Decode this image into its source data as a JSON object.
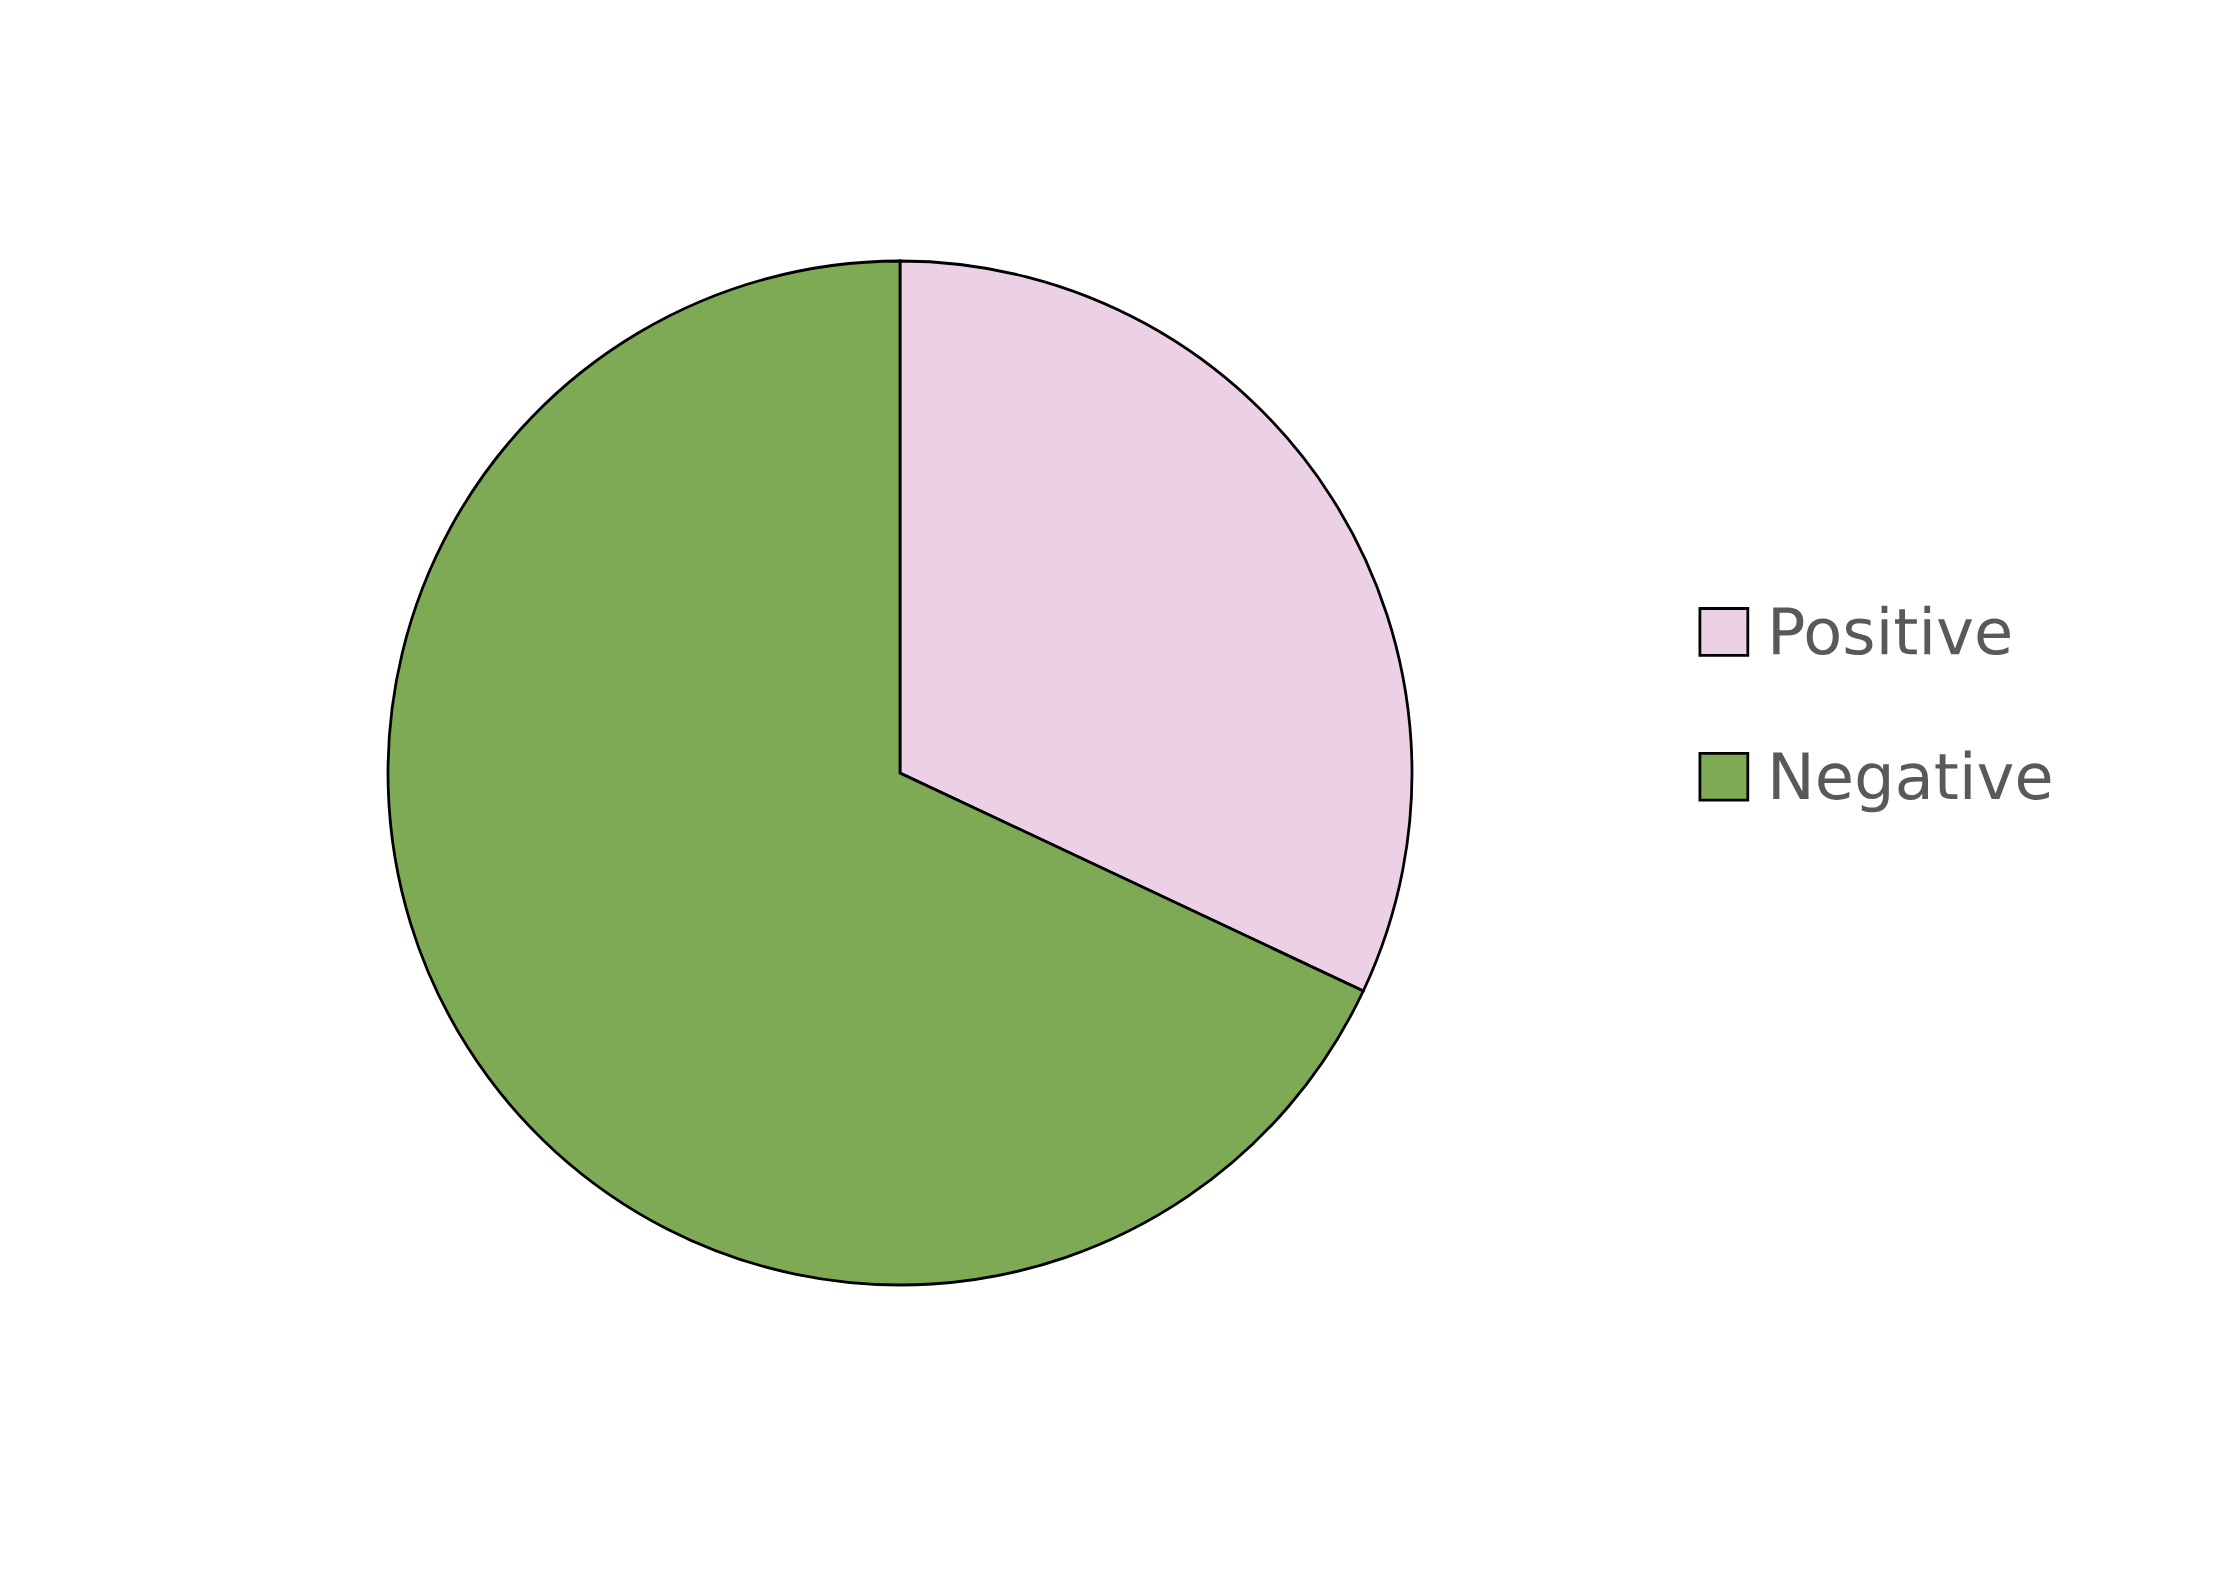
{
  "chart_data": {
    "type": "pie",
    "categories": [
      "Positive",
      "Negative"
    ],
    "values": [
      32,
      68
    ],
    "colors": [
      "#ecd0e6",
      "#7faa55"
    ],
    "legend": "right"
  }
}
